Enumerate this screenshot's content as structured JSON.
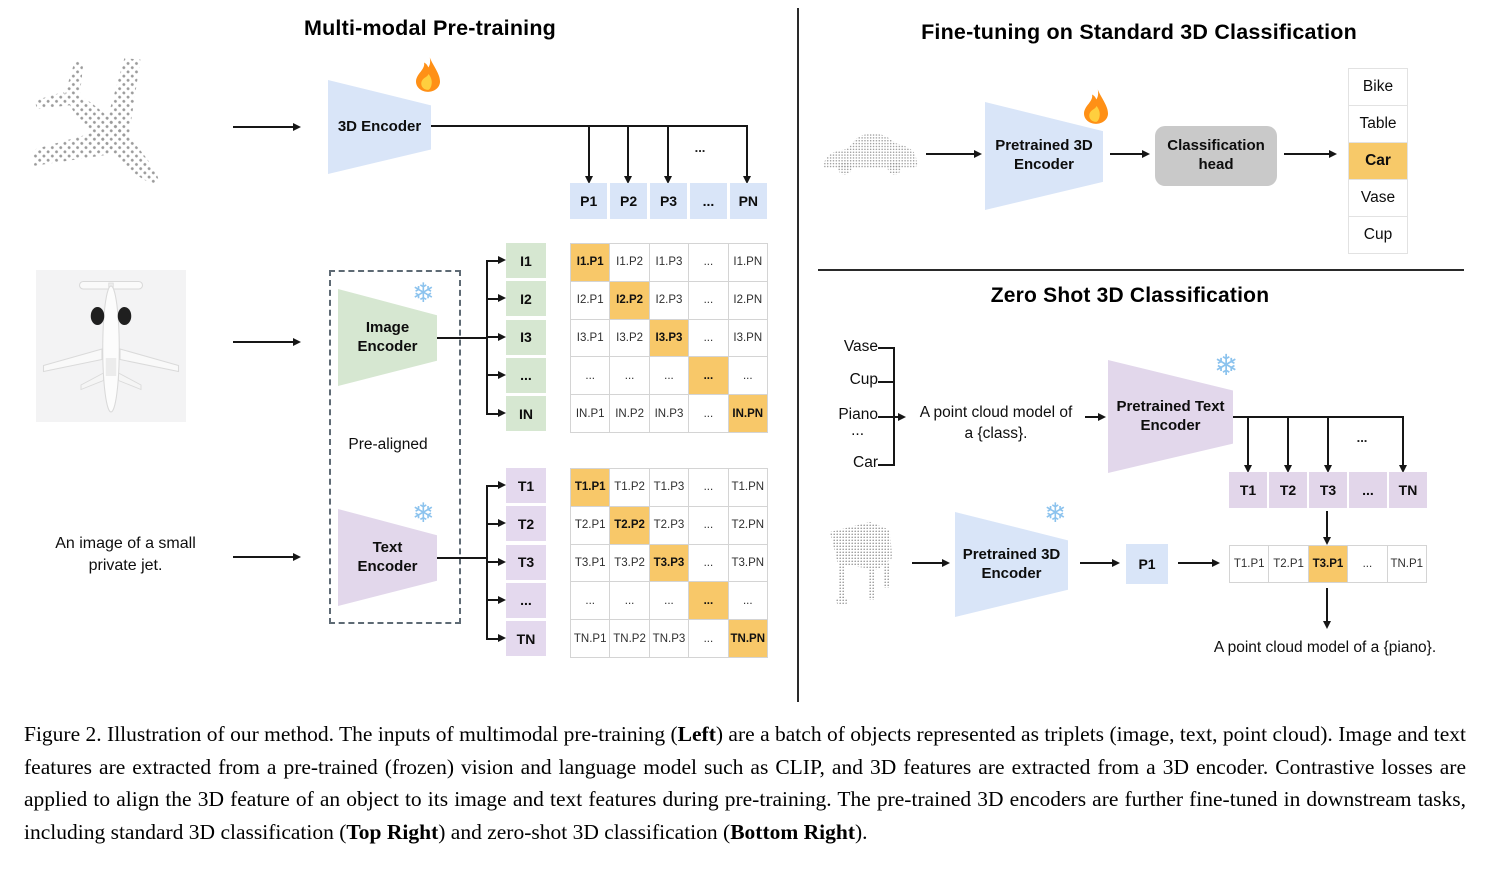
{
  "left_panel": {
    "title": "Multi-modal Pre-training",
    "encoder_3d_label": "3D Encoder",
    "image_encoder": {
      "line1": "Image",
      "line2": "Encoder"
    },
    "text_encoder": {
      "line1": "Text",
      "line2": "Encoder"
    },
    "pre_aligned_label": "Pre-aligned",
    "text_prompt": {
      "line1": "An image of a small",
      "line2": "private jet."
    },
    "fan_dots": "...",
    "p_row": [
      "P1",
      "P2",
      "P3",
      "...",
      "PN"
    ],
    "image_rows": [
      "I1",
      "I2",
      "I3",
      "...",
      "IN"
    ],
    "text_rows": [
      "T1",
      "T2",
      "T3",
      "...",
      "TN"
    ],
    "image_matrix": [
      [
        "I1.P1",
        "I1.P2",
        "I1.P3",
        "...",
        "I1.PN"
      ],
      [
        "I2.P1",
        "I2.P2",
        "I2.P3",
        "...",
        "I2.PN"
      ],
      [
        "I3.P1",
        "I3.P2",
        "I3.P3",
        "...",
        "I3.PN"
      ],
      [
        "...",
        "...",
        "...",
        "...",
        "..."
      ],
      [
        "IN.P1",
        "IN.P2",
        "IN.P3",
        "...",
        "IN.PN"
      ]
    ],
    "text_matrix": [
      [
        "T1.P1",
        "T1.P2",
        "T1.P3",
        "...",
        "T1.PN"
      ],
      [
        "T2.P1",
        "T2.P2",
        "T2.P3",
        "...",
        "T2.PN"
      ],
      [
        "T3.P1",
        "T3.P2",
        "T3.P3",
        "...",
        "T3.PN"
      ],
      [
        "...",
        "...",
        "...",
        "...",
        "..."
      ],
      [
        "TN.P1",
        "TN.P2",
        "TN.P3",
        "...",
        "TN.PN"
      ]
    ]
  },
  "top_right_panel": {
    "title": "Fine-tuning on Standard 3D Classification",
    "encoder": {
      "line1": "Pretrained 3D",
      "line2": "Encoder"
    },
    "classification_head": {
      "line1": "Classification",
      "line2": "head"
    },
    "classes": [
      "Bike",
      "Table",
      "Car",
      "Vase",
      "Cup"
    ],
    "highlighted_class": "Car"
  },
  "bottom_right_panel": {
    "title": "Zero Shot 3D Classification",
    "class_list": [
      "Vase",
      "Cup",
      "Piano",
      "...",
      "Car"
    ],
    "prompt": {
      "line1": "A point cloud model of",
      "line2": "a {class}."
    },
    "text_encoder": {
      "line1": "Pretrained Text",
      "line2": "Encoder"
    },
    "encoder_3d": {
      "line1": "Pretrained 3D",
      "line2": "Encoder"
    },
    "p1_label": "P1",
    "fan_dots": "...",
    "t_row": [
      "T1",
      "T2",
      "T3",
      "...",
      "TN"
    ],
    "tp_row": [
      "T1.P1",
      "T2.P1",
      "T3.P1",
      "...",
      "TN.P1"
    ],
    "tp_highlight_index": 2,
    "result_text": "A point cloud model of a {piano}."
  },
  "caption": {
    "segments": [
      {
        "text": "Figure 2. Illustration of our method. The inputs of multimodal pre-training (",
        "bold": false
      },
      {
        "text": "Left",
        "bold": true
      },
      {
        "text": ") are a batch of objects represented as triplets (image, text, point cloud). Image and text features are extracted from a pre-trained (frozen) vision and language model such as CLIP, and 3D features are extracted from a 3D encoder. Contrastive losses are applied to align the 3D feature of an object to its image and text features during pre-training. The pre-trained 3D encoders are further fine-tuned in downstream tasks, including standard 3D classification (",
        "bold": false
      },
      {
        "text": "Top Right",
        "bold": true
      },
      {
        "text": ") and zero-shot 3D classification (",
        "bold": false
      },
      {
        "text": "Bottom Right",
        "bold": true
      },
      {
        "text": ").",
        "bold": false
      }
    ]
  },
  "icons": {
    "flame": "flame-icon (trainable)",
    "snowflake": "snowflake-icon (frozen)"
  },
  "colors": {
    "encoder_blue": "#d9e5f8",
    "encoder_green": "#d6e7d1",
    "encoder_purple": "#e2d7eb",
    "highlight_orange": "#f8c869",
    "classification_head_gray": "#c9c9c9",
    "snowflake_blue": "#8cc3ee"
  }
}
